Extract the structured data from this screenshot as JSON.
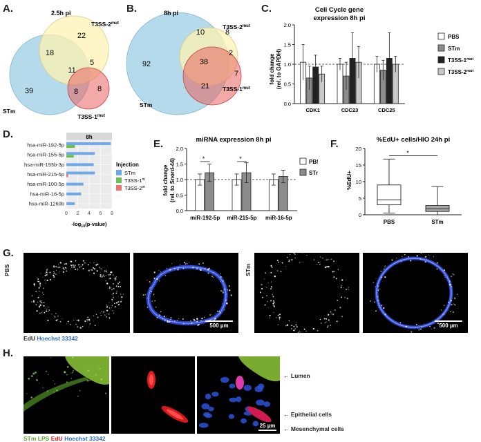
{
  "panels": {
    "A": {
      "letter": "A.",
      "title": "2.5h pi",
      "sets": {
        "stm": "STm",
        "t3ss2_base": "T3SS-2",
        "t3ss1_base": "T3SS-1",
        "mut_sup": "mut"
      },
      "regions": {
        "t3ss2_only": "22",
        "stm_t3ss2": "18",
        "all_three": "11",
        "t3ss2_t3ss1": "5",
        "stm_only": "39",
        "stm_t3ss1": "8",
        "t3ss1_only": "8"
      },
      "colors": {
        "stm": "#a8d3e8",
        "t3ss2": "#fdf3b3",
        "t3ss1": "#e8625f"
      }
    },
    "B": {
      "letter": "B.",
      "title": "8h pi",
      "sets": {
        "stm": "STm",
        "t3ss2_base": "T3SS-2",
        "t3ss1_base": "T3SS-1",
        "mut_sup": "mut"
      },
      "regions": {
        "stm_only": "92",
        "stm_t3ss2": "10",
        "t3ss2_only": "8",
        "all_three": "38",
        "t3ss2_t3ss1": "2",
        "t3ss1_only": "7",
        "stm_t3ss1": "21"
      }
    },
    "C": {
      "letter": "C.",
      "chart_data": {
        "type": "bar",
        "title": "Cell Cycle gene expression 8h pi",
        "title_line1": "Cell Cycle gene",
        "title_line2": "expression 8h pi",
        "ylabel_line1": "fold change",
        "ylabel_line2": "(rel. to GAPDH)",
        "categories": [
          "CDK1",
          "CDC23",
          "CDC25"
        ],
        "ylim": [
          0,
          2.0
        ],
        "yticks": [
          "0.0",
          "0.5",
          "1.0",
          "1.5",
          "2.0"
        ],
        "reference_line": 1.0,
        "series": [
          {
            "name": "PBS",
            "values": [
              1.05,
              1.0,
              1.0
            ],
            "errors": [
              0.45,
              0.15,
              0.2
            ],
            "color": "#ffffff"
          },
          {
            "name": "STm",
            "values": [
              0.65,
              0.7,
              0.85
            ],
            "errors": [
              0.3,
              0.35,
              0.25
            ],
            "color": "#8c8c8c"
          },
          {
            "name": "T3SS-1",
            "sup": "mut",
            "values": [
              0.93,
              1.15,
              1.15
            ],
            "errors": [
              0.3,
              0.65,
              0.65
            ],
            "color": "#222222"
          },
          {
            "name": "T3SS-2",
            "sup": "mut",
            "values": [
              0.75,
              1.05,
              1.0
            ],
            "errors": [
              0.2,
              0.4,
              0.2
            ],
            "color": "#c8c8c8"
          }
        ]
      }
    },
    "D": {
      "letter": "D.",
      "chart_data": {
        "type": "bar",
        "orientation": "horizontal",
        "facet_title": "8h",
        "xlabel": "-log",
        "xlabel_sub": "10",
        "xlabel_end": "(p-value)",
        "categories": [
          "hsa-miR-192-5p",
          "hsa-miR-155-5p",
          "hsa-miR-193b-3p",
          "hsa-miR-215-5p",
          "hsa-miR-100-5p",
          "hsa-miR-16-5p",
          "hsa-miR-1260b"
        ],
        "xlim": [
          0,
          8
        ],
        "xticks": [
          "0",
          "2",
          "4",
          "6",
          "8"
        ],
        "legend_title": "Injection",
        "series": [
          {
            "name": "STm",
            "values": [
              7.8,
              5.0,
              4.8,
              5.0,
              3.0,
              2.6,
              1.5
            ],
            "color": "#6fa8e8"
          },
          {
            "name": "T3SS-1",
            "sup": "mut",
            "values": [
              1.5,
              1.3,
              0,
              0,
              0,
              0,
              0
            ],
            "color": "#6dbf4f"
          },
          {
            "name": "T3SS-2",
            "sup": "mut",
            "values": [
              0,
              0,
              0,
              0.3,
              0,
              0,
              0
            ],
            "color": "#e8756f"
          }
        ]
      }
    },
    "E": {
      "letter": "E.",
      "chart_data": {
        "type": "bar",
        "title": "miRNA expression 8h pi",
        "ylabel_line1": "fold change",
        "ylabel_line2": "(rel. to Snord-44)",
        "categories": [
          "miR-192-5p",
          "miR-215-5p",
          "miR-16-5p"
        ],
        "ylim": [
          0,
          2.0
        ],
        "yticks": [
          "0.0",
          "0.5",
          "1.0",
          "1.5",
          "2.0"
        ],
        "reference_line": 1.0,
        "significance": "*",
        "series": [
          {
            "name": "PBS",
            "values": [
              1.0,
              1.0,
              1.0
            ],
            "errors": [
              0.18,
              0.18,
              0.18
            ],
            "color": "#ffffff"
          },
          {
            "name": "STm",
            "values": [
              1.22,
              1.22,
              1.1
            ],
            "errors": [
              0.28,
              0.32,
              0.2
            ],
            "color": "#8c8c8c"
          }
        ]
      }
    },
    "F": {
      "letter": "F.",
      "chart_data": {
        "type": "box",
        "title": "%EdU+ cells/HIO 24h pi",
        "ylabel": "%EdU+",
        "categories": [
          "PBS",
          "STm"
        ],
        "ylim": [
          0,
          20
        ],
        "yticks": [
          "0",
          "5",
          "10",
          "15",
          "20"
        ],
        "significance": "*",
        "boxes": [
          {
            "name": "PBS",
            "min": 0.5,
            "q1": 3.0,
            "median": 4.5,
            "q3": 9.0,
            "max": 16.8,
            "color": "#ffffff"
          },
          {
            "name": "STm",
            "min": 0.0,
            "q1": 1.0,
            "median": 1.8,
            "q3": 2.8,
            "max": 8.5,
            "color": "#a8a8a8"
          }
        ]
      }
    },
    "G": {
      "letter": "G.",
      "row_label_left": "PBS",
      "row_label_right": "STm",
      "scale_bar": "500 µm",
      "caption_edu": "EdU",
      "caption_hoechst": "Hoechst 33342"
    },
    "H": {
      "letter": "H.",
      "scale_bar": "25 µm",
      "annotations": {
        "lumen": "Lumen",
        "epithelial": "Epithelial cells",
        "mesenchymal": "Mesenchymal cells"
      },
      "caption_stm_lps": "STm LPS",
      "caption_edu": "EdU",
      "caption_hoechst": "Hoechst 33342"
    }
  }
}
